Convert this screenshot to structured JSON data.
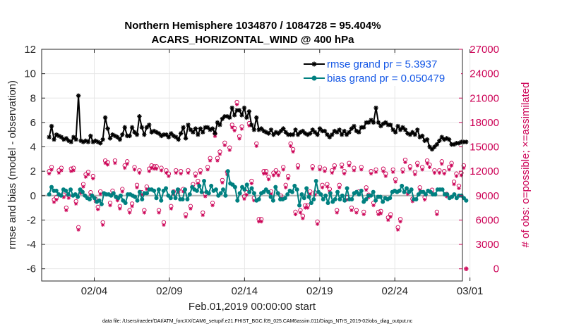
{
  "chart_data": {
    "type": "line",
    "title": "Northern Hemisphere 1034870 / 1084728 = 95.404%",
    "subtitle": "ACARS_HORIZONTAL_WIND @ 400 hPa",
    "xlabel": "Feb.01,2019 00:00:00 start",
    "ylabel_left": "rmse and bias (model - observation)",
    "ylabel_right": "# of obs: o=possible; ×=assimilated",
    "x_ticks": [
      "02/04",
      "02/09",
      "02/14",
      "02/19",
      "02/24",
      "03/01"
    ],
    "y_left_ticks": [
      "12",
      "10",
      "8",
      "6",
      "4",
      "2",
      "0",
      "-2",
      "-4",
      "-6"
    ],
    "y_right_ticks": [
      "27000",
      "24000",
      "21000",
      "18000",
      "15000",
      "12000",
      "9000",
      "6000",
      "3000",
      "0"
    ],
    "ylim_left": [
      -7,
      12
    ],
    "ylim_right": [
      -1500,
      27000
    ],
    "xlim": [
      0.5,
      28.5
    ],
    "grid": true,
    "legend_position": "top-right",
    "series": [
      {
        "name": "rmse grand pr = 5.3937",
        "color": "#000000",
        "marker": "star",
        "values": [
          4.8,
          5.7,
          4.6,
          5.0,
          4.9,
          4.8,
          4.6,
          4.7,
          4.5,
          4.4,
          4.8,
          4.6,
          8.2,
          4.5,
          4.4,
          4.5,
          4.4,
          4.9,
          4.4,
          4.5,
          4.4,
          4.3,
          4.6,
          6.4,
          5.5,
          4.7,
          5.0,
          4.9,
          4.8,
          4.6,
          5.0,
          5.6,
          4.9,
          4.9,
          5.6,
          5.2,
          5.0,
          6.5,
          5.6,
          5.0,
          5.6,
          5.8,
          5.2,
          5.3,
          5.2,
          5.1,
          4.9,
          5.0,
          5.0,
          4.8,
          5.1,
          4.9,
          4.8,
          4.6,
          5.1,
          5.6,
          4.7,
          5.8,
          5.4,
          5.2,
          5.5,
          5.0,
          5.5,
          5.2,
          5.6,
          5.6,
          5.4,
          5.5,
          5.1,
          6.0,
          5.8,
          6.3,
          6.5,
          6.5,
          6.4,
          7.2,
          6.6,
          7.0,
          7.0,
          6.6,
          7.2,
          6.4,
          6.9,
          5.8,
          5.4,
          6.4,
          5.4,
          5.5,
          5.3,
          5.2,
          5.1,
          5.4,
          5.0,
          5.2,
          5.1,
          5.3,
          5.5,
          5.2,
          5.0,
          5.0,
          5.0,
          5.4,
          5.0,
          5.2,
          5.3,
          5.1,
          5.0,
          5.1,
          5.4,
          5.2,
          5.0,
          5.5,
          5.3,
          5.3,
          5.0,
          4.8,
          5.0,
          5.3,
          5.2,
          5.4,
          5.0,
          5.3,
          5.0,
          5.2,
          5.5,
          5.7,
          5.3,
          5.2,
          5.6,
          5.6,
          6.0,
          6.0,
          6.2,
          6.0,
          7.2,
          6.0,
          5.7,
          5.9,
          6.0,
          5.8,
          5.8,
          5.4,
          5.2,
          5.7,
          5.4,
          5.6,
          5.4,
          5.1,
          5.0,
          5.2,
          5.0,
          5.4,
          4.8,
          4.9,
          4.5,
          4.6,
          4.0,
          3.8,
          4.0,
          4.2,
          4.5,
          4.8,
          4.6,
          4.7,
          4.6,
          4.2,
          4.2,
          4.3,
          4.3,
          4.4,
          4.4,
          4.4
        ]
      },
      {
        "name": "bias grand pr = 0.050479",
        "color": "#008080",
        "marker": "circle",
        "values": [
          0.1,
          0.7,
          0.4,
          0.4,
          0.1,
          0.0,
          0.5,
          0.4,
          0.1,
          0.5,
          0.0,
          0.1,
          -0.1,
          0.5,
          0.3,
          0.0,
          -0.2,
          -0.3,
          0.0,
          -0.2,
          -0.5,
          -0.4,
          -0.7,
          0.2,
          0.1,
          0.1,
          0.0,
          0.2,
          -0.1,
          -0.2,
          0.0,
          -0.4,
          -0.6,
          0.1,
          0.1,
          0.0,
          -0.1,
          -0.4,
          0.3,
          -0.3,
          0.2,
          0.2,
          0.5,
          0.5,
          0.4,
          -0.2,
          0.5,
          -0.4,
          0.4,
          0.6,
          0.0,
          -0.2,
          0.3,
          -0.2,
          0.5,
          -0.3,
          -0.3,
          0.5,
          -0.3,
          0.1,
          0.7,
          0.5,
          0.4,
          0.8,
          0.3,
          1.2,
          0.3,
          0.2,
          0.8,
          0.4,
          0.5,
          0.0,
          0.2,
          0.5,
          0.0,
          2.0,
          1.0,
          0.9,
          0.7,
          -0.4,
          0.2,
          0.7,
          0.5,
          0.9,
          0.3,
          0.6,
          0.2,
          -0.4,
          -0.3,
          0.2,
          0.3,
          0.5,
          0.3,
          -0.1,
          -0.4,
          0.7,
          0.2,
          -0.3,
          -0.3,
          -0.2,
          0.1,
          0.4,
          0.3,
          0.8,
          0.5,
          -0.8,
          0.1,
          -0.2,
          0.6,
          -0.1,
          -0.6,
          -0.3,
          1.2,
          0.3,
          0.1,
          -0.3,
          0.0,
          -0.6,
          0.2,
          -0.5,
          -0.3,
          0.3,
          -0.3,
          0.0,
          -0.4,
          0.6,
          -0.3,
          -0.3,
          0.2,
          0.3,
          0.1,
          0.4,
          -0.5,
          -0.3,
          0.0,
          0.0,
          0.3,
          -0.4,
          -0.1,
          -0.1,
          -0.5,
          -0.2,
          -0.3,
          -0.2,
          0.3,
          0.4,
          0.3,
          0.4,
          0.8,
          0.3,
          0.6,
          0.3,
          0.5,
          -0.3,
          -0.3,
          0.1,
          0.3,
          0.3,
          0.1,
          0.4,
          0.3,
          0.1,
          0.1,
          0.5,
          0.5,
          0.5,
          0.1,
          0.1,
          -0.2,
          -0.1,
          0.1,
          -0.2,
          0.0,
          0.0,
          -0.2,
          -0.4
        ]
      },
      {
        "name": "possible",
        "color": "#cc0055",
        "marker": "o",
        "axis": "right",
        "values": [
          12000,
          12500,
          8500,
          8800,
          12100,
          12400,
          9100,
          7500,
          9000,
          12300,
          12400,
          8300,
          5100,
          9600,
          10400,
          11600,
          11900,
          9400,
          11400,
          8600,
          7600,
          9500,
          5700,
          13300,
          13100,
          8100,
          9600,
          13300,
          8700,
          7700,
          9800,
          12700,
          13200,
          7200,
          8000,
          12500,
          10300,
          12100,
          9400,
          7200,
          10100,
          12300,
          12700,
          12600,
          12600,
          7200,
          12400,
          5700,
          12100,
          11700,
          7700,
          9500,
          12100,
          9700,
          12000,
          9800,
          6700,
          12100,
          7700,
          10400,
          11700,
          10800,
          12100,
          6900,
          9200,
          12500,
          13600,
          8100,
          16600,
          13600,
          14400,
          10900,
          15500,
          11900,
          14900,
          17700,
          17300,
          20500,
          16300,
          17500,
          8900,
          9400,
          17900,
          10800,
          8700,
          15400,
          6100,
          6100,
          12000,
          12000,
          11300,
          9500,
          11800,
          12100,
          11800,
          9000,
          12500,
          10300,
          11400,
          15400,
          14700,
          7000,
          12700,
          7200,
          6500,
          7800,
          7800,
          9500,
          12600,
          9400,
          5800,
          12500,
          10300,
          12300,
          10400,
          9800,
          12100,
          12700,
          7200,
          10300,
          12800,
          12000,
          8800,
          13000,
          7500,
          12400,
          7200,
          9500,
          12500,
          7000,
          10000,
          9100,
          12000,
          8100,
          12200,
          7000,
          7100,
          12300,
          11700,
          6300,
          6700,
          12200,
          11000,
          5100,
          6100,
          12200,
          13400,
          9500,
          12600,
          8600,
          11900,
          13000,
          10000,
          12500,
          8800,
          13300,
          12800,
          9700,
          12100,
          7000,
          12100,
          13200,
          12000,
          9200,
          12500,
          13000,
          10700,
          11700,
          10200,
          11800,
          12700,
          0
        ]
      },
      {
        "name": "assimilated",
        "color": "#cc0055",
        "marker": "asterisk",
        "axis": "right",
        "values": [
          11700,
          12200,
          8200,
          8500,
          11800,
          12100,
          8800,
          7200,
          8700,
          12000,
          12100,
          8000,
          4800,
          9300,
          10100,
          11300,
          11600,
          9100,
          11100,
          8300,
          7300,
          9200,
          5400,
          13000,
          12800,
          7800,
          9300,
          13000,
          8400,
          7400,
          9500,
          12400,
          12900,
          6900,
          7700,
          12200,
          10000,
          11800,
          9100,
          6900,
          9800,
          12000,
          12400,
          12300,
          12300,
          6900,
          12100,
          5400,
          11800,
          11400,
          7400,
          9200,
          11800,
          9400,
          11700,
          9500,
          6400,
          11800,
          7400,
          10100,
          11400,
          10500,
          11800,
          6600,
          8900,
          12200,
          13300,
          7800,
          16300,
          13300,
          14100,
          10600,
          15200,
          11600,
          14600,
          17400,
          17000,
          20200,
          16000,
          17200,
          8600,
          9100,
          17600,
          10500,
          8400,
          15100,
          5800,
          5800,
          11700,
          11700,
          11000,
          9200,
          11500,
          11800,
          11500,
          8700,
          12200,
          10000,
          11100,
          15100,
          14400,
          6700,
          12400,
          6900,
          6200,
          7500,
          7500,
          9200,
          12300,
          9100,
          5500,
          12200,
          10000,
          12000,
          10100,
          9500,
          11800,
          12400,
          6900,
          10000,
          12500,
          11700,
          8500,
          12700,
          7200,
          12100,
          6900,
          9200,
          12200,
          6700,
          9700,
          8800,
          11700,
          7800,
          11900,
          6700,
          6800,
          12000,
          11400,
          6000,
          6400,
          11900,
          10700,
          4800,
          5800,
          11900,
          13100,
          9200,
          12300,
          8300,
          11600,
          12700,
          9700,
          12200,
          8500,
          13000,
          12500,
          9400,
          11800,
          6700,
          11800,
          12900,
          11700,
          8900,
          12200,
          12700,
          10400,
          11400,
          9900,
          11500,
          12400,
          0
        ]
      }
    ]
  },
  "footer": {
    "data_file": "data file: /Users/raeder/DAI/ATM_forcXX/CAM6_setup/f.e21.FHIST_BGC.f09_025.CAM6assim.011/Diags_NTrS_2019-02/obs_diag_output.nc"
  }
}
